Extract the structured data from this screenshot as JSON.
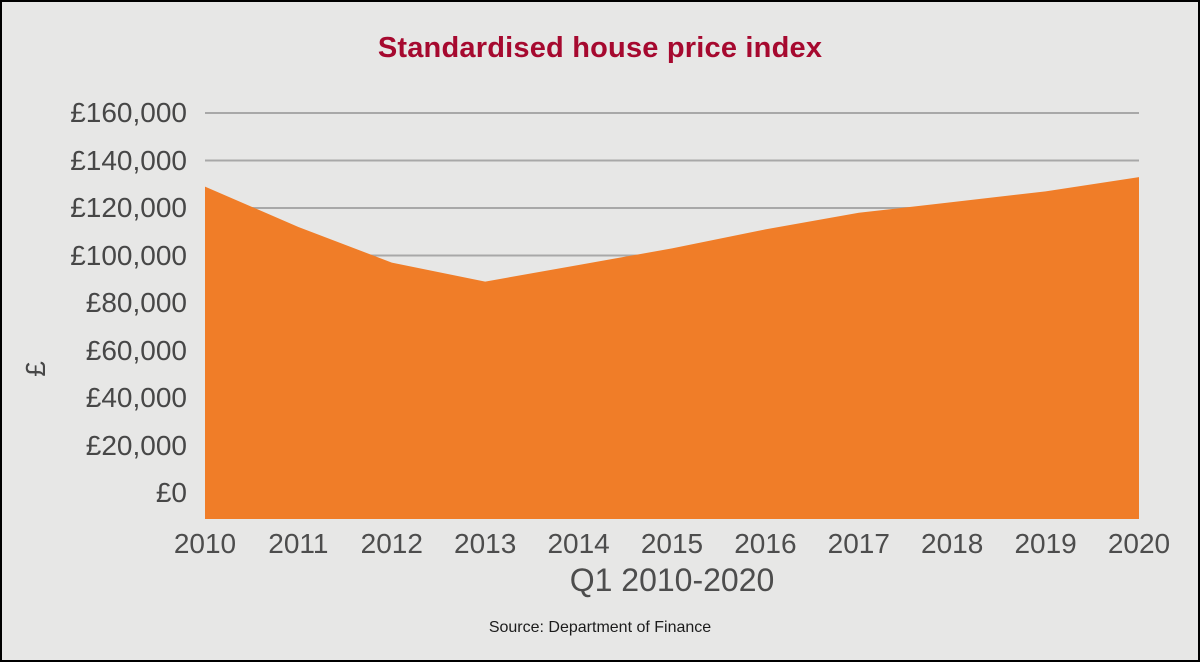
{
  "chart_data": {
    "type": "area",
    "title": "Standardised house price index",
    "categories": [
      "2010",
      "2011",
      "2012",
      "2013",
      "2014",
      "2015",
      "2016",
      "2017",
      "2018",
      "2019",
      "2020"
    ],
    "values": [
      129000,
      112000,
      97000,
      89000,
      96000,
      103000,
      111000,
      118000,
      122500,
      127000,
      133000
    ],
    "xlabel": "Q1 2010-2020",
    "ylabel": "£",
    "ylim": [
      0,
      160000
    ],
    "ytick_step": 20000,
    "ytick_labels": [
      "£0",
      "£20,000",
      "£40,000",
      "£60,000",
      "£80,000",
      "£100,000",
      "£120,000",
      "£140,000",
      "£160,000"
    ],
    "grid": true,
    "legend": "none",
    "source": "Source: Department of Finance",
    "colors": {
      "area": "#F07D28",
      "gridline": "#A8A8A8",
      "title": "#A6092F",
      "tick_labels": "#474747",
      "axis_titles": "#4D4D4D",
      "source_text": "#1C1C1C",
      "background": "#E7E7E6",
      "border": "#000000"
    }
  }
}
